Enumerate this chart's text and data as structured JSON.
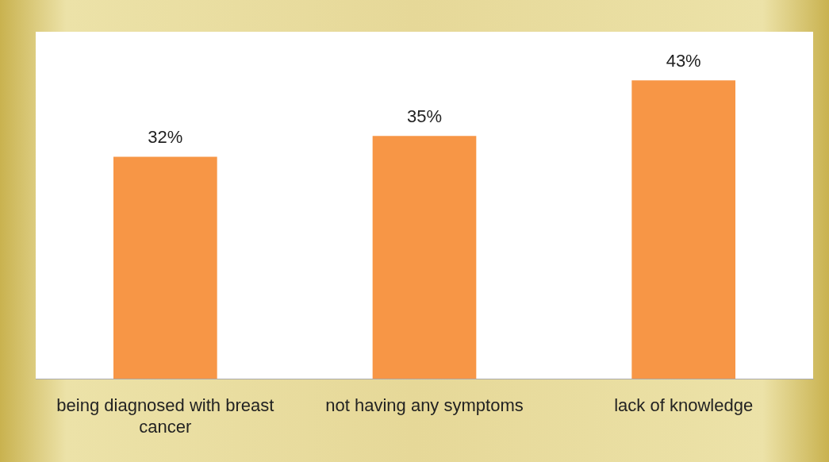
{
  "chart_data": {
    "type": "bar",
    "categories": [
      "being diagnosed with breast cancer",
      "not having any symptoms",
      "lack of knowledge"
    ],
    "values": [
      32,
      35,
      43
    ],
    "value_labels": [
      "32%",
      "35%",
      "43%"
    ],
    "color": "#f79646",
    "ylim": [
      0,
      50
    ],
    "grid": false,
    "legend": false
  }
}
